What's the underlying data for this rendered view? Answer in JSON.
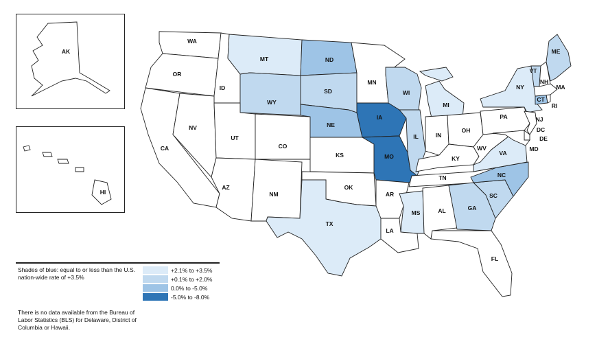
{
  "colors": {
    "none": "#ffffff",
    "tier1": "#dcebf8",
    "tier2": "#c0d9ef",
    "tier3": "#9ec4e6",
    "tier4": "#2e75b6"
  },
  "states": {
    "WA": {
      "label": "WA",
      "tier": "none"
    },
    "OR": {
      "label": "OR",
      "tier": "none"
    },
    "CA": {
      "label": "CA",
      "tier": "none"
    },
    "ID": {
      "label": "ID",
      "tier": "none"
    },
    "NV": {
      "label": "NV",
      "tier": "none"
    },
    "MT": {
      "label": "MT",
      "tier": "tier1"
    },
    "WY": {
      "label": "WY",
      "tier": "tier2"
    },
    "UT": {
      "label": "UT",
      "tier": "none"
    },
    "AZ": {
      "label": "AZ",
      "tier": "none"
    },
    "CO": {
      "label": "CO",
      "tier": "none"
    },
    "NM": {
      "label": "NM",
      "tier": "none"
    },
    "ND": {
      "label": "ND",
      "tier": "tier3"
    },
    "SD": {
      "label": "SD",
      "tier": "tier2"
    },
    "NE": {
      "label": "NE",
      "tier": "tier3"
    },
    "KS": {
      "label": "KS",
      "tier": "none"
    },
    "OK": {
      "label": "OK",
      "tier": "none"
    },
    "TX": {
      "label": "TX",
      "tier": "tier1"
    },
    "MN": {
      "label": "MN",
      "tier": "none"
    },
    "IA": {
      "label": "IA",
      "tier": "tier4"
    },
    "MO": {
      "label": "MO",
      "tier": "tier4"
    },
    "AR": {
      "label": "AR",
      "tier": "none"
    },
    "LA": {
      "label": "LA",
      "tier": "none"
    },
    "WI": {
      "label": "WI",
      "tier": "tier2"
    },
    "IL": {
      "label": "IL",
      "tier": "tier2"
    },
    "MI": {
      "label": "MI",
      "tier": "tier1"
    },
    "IN": {
      "label": "IN",
      "tier": "none"
    },
    "OH": {
      "label": "OH",
      "tier": "none"
    },
    "KY": {
      "label": "KY",
      "tier": "none"
    },
    "TN": {
      "label": "TN",
      "tier": "none"
    },
    "MS": {
      "label": "MS",
      "tier": "tier1"
    },
    "AL": {
      "label": "AL",
      "tier": "none"
    },
    "GA": {
      "label": "GA",
      "tier": "tier2"
    },
    "FL": {
      "label": "FL",
      "tier": "none"
    },
    "SC": {
      "label": "SC",
      "tier": "tier2"
    },
    "NC": {
      "label": "NC",
      "tier": "tier3"
    },
    "VA": {
      "label": "VA",
      "tier": "tier1"
    },
    "WV": {
      "label": "WV",
      "tier": "none"
    },
    "PA": {
      "label": "PA",
      "tier": "none"
    },
    "NY": {
      "label": "NY",
      "tier": "tier1"
    },
    "NJ": {
      "label": "NJ",
      "tier": "none"
    },
    "DE": {
      "label": "DE",
      "tier": "none"
    },
    "MD": {
      "label": "MD",
      "tier": "none"
    },
    "DC": {
      "label": "DC",
      "tier": "none"
    },
    "CT": {
      "label": "CT",
      "tier": "tier3"
    },
    "RI": {
      "label": "RI",
      "tier": "none"
    },
    "MA": {
      "label": "MA",
      "tier": "none"
    },
    "VT": {
      "label": "VT",
      "tier": "tier2"
    },
    "NH": {
      "label": "NH",
      "tier": "none"
    },
    "ME": {
      "label": "ME",
      "tier": "tier2"
    },
    "AK": {
      "label": "AK",
      "tier": "none"
    },
    "HI": {
      "label": "HI",
      "tier": "none"
    }
  },
  "legend": {
    "description": "Shades of blue: equal to or less than the U.S. nation-wide rate of +3.5%",
    "items": [
      {
        "tier": "tier1",
        "label": "+2.1% to +3.5%"
      },
      {
        "tier": "tier2",
        "label": "+0.1% to +2.0%"
      },
      {
        "tier": "tier3",
        "label": "0.0% to -5.0%"
      },
      {
        "tier": "tier4",
        "label": "-5.0% to -8.0%"
      }
    ],
    "no_data_note": "There is no data available from the Bureau of Labor Statistics (BLS) for Delaware, District of Columbia or Hawaii."
  }
}
